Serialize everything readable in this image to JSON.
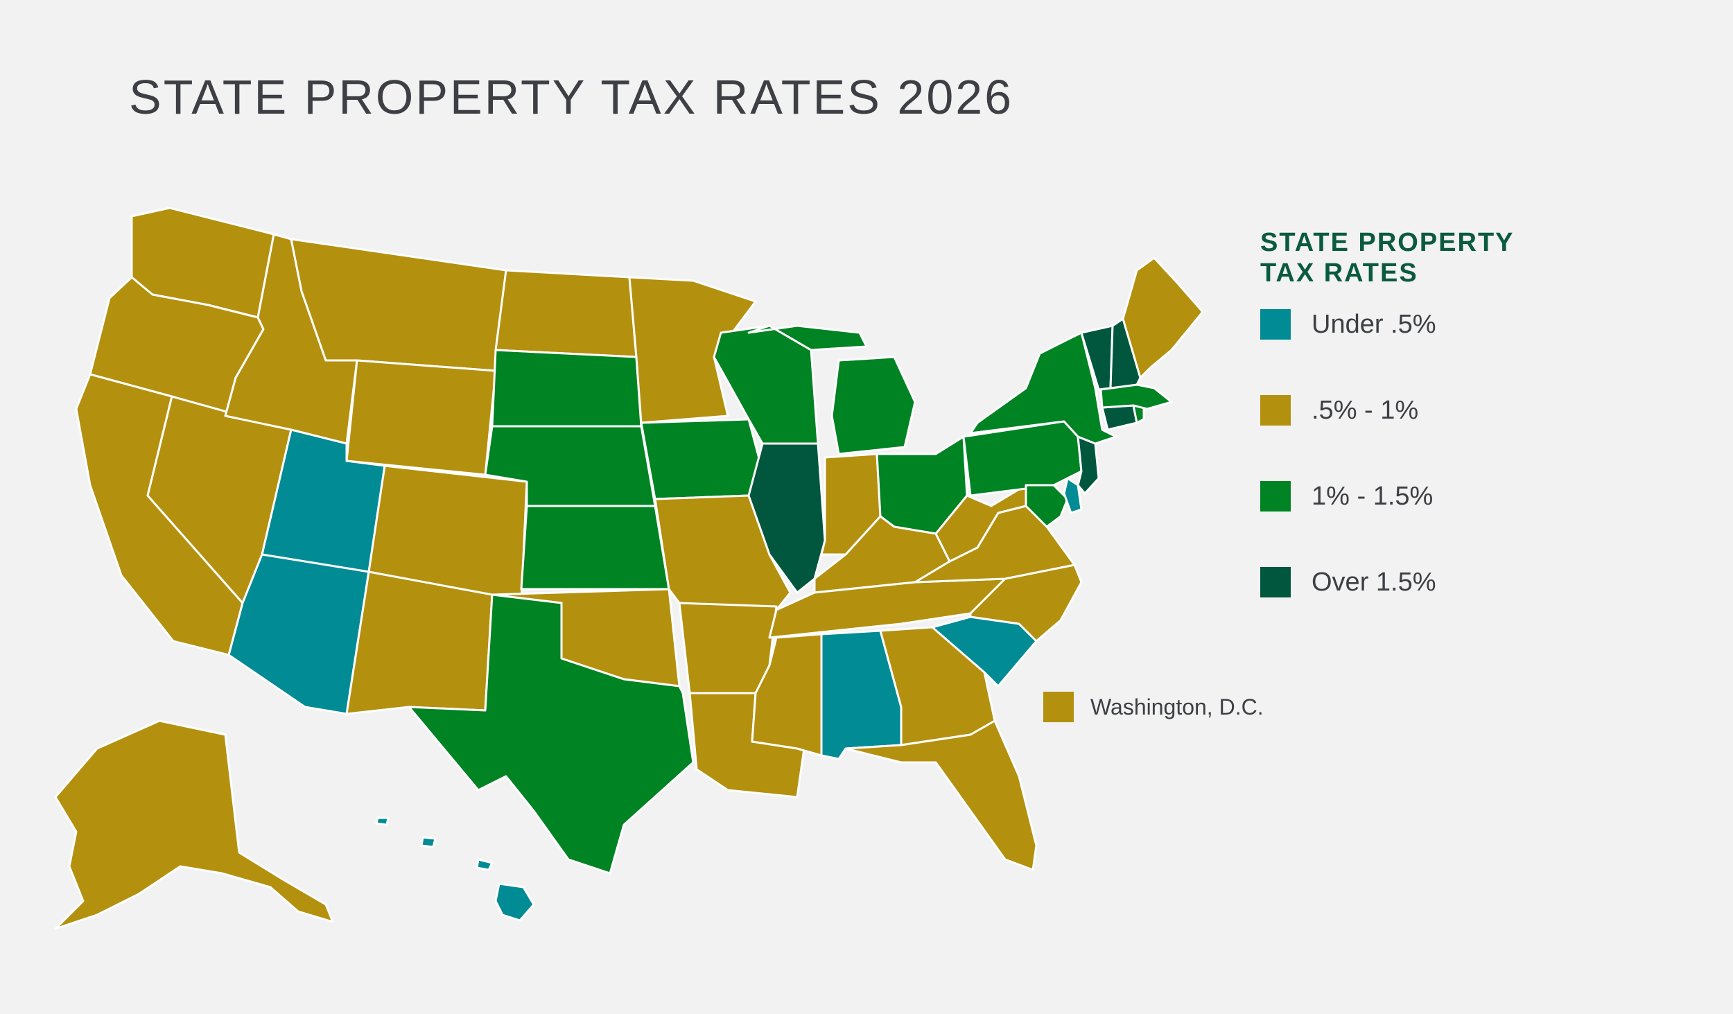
{
  "title": "STATE PROPERTY TAX RATES 2026",
  "legend": {
    "title": "STATE PROPERTY\nTAX RATES",
    "items": [
      {
        "label": "Under .5%",
        "color": "#008b95"
      },
      {
        "label": ".5% - 1%",
        "color": "#b4900f"
      },
      {
        "label": "1% - 1.5%",
        "color": "#008323"
      },
      {
        "label": "Over 1.5%",
        "color": "#01573e"
      }
    ]
  },
  "dc_note": {
    "label": "Washington, D.C.",
    "color": "#b4900f"
  },
  "categories": {
    "Under .5%": [
      "Utah",
      "Arizona",
      "Alabama",
      "South Carolina",
      "Hawaii",
      "Delaware"
    ],
    ".5% - 1%": [
      "Washington",
      "Oregon",
      "California",
      "Nevada",
      "Idaho",
      "Montana",
      "Wyoming",
      "Colorado",
      "New Mexico",
      "North Dakota",
      "Minnesota",
      "Oklahoma",
      "Missouri",
      "Arkansas",
      "Louisiana",
      "Mississippi",
      "Tennessee",
      "Kentucky",
      "Indiana",
      "West Virginia",
      "Virginia",
      "North Carolina",
      "Georgia",
      "Florida",
      "Maine",
      "Alaska",
      "Washington, D.C."
    ],
    "1% - 1.5%": [
      "South Dakota",
      "Nebraska",
      "Kansas",
      "Texas",
      "Iowa",
      "Wisconsin",
      "Michigan",
      "Ohio",
      "Pennsylvania",
      "New York",
      "Massachusetts",
      "Rhode Island",
      "Maryland"
    ],
    "Over 1.5%": [
      "Illinois",
      "New Jersey",
      "Vermont",
      "New Hampshire",
      "Connecticut"
    ]
  }
}
